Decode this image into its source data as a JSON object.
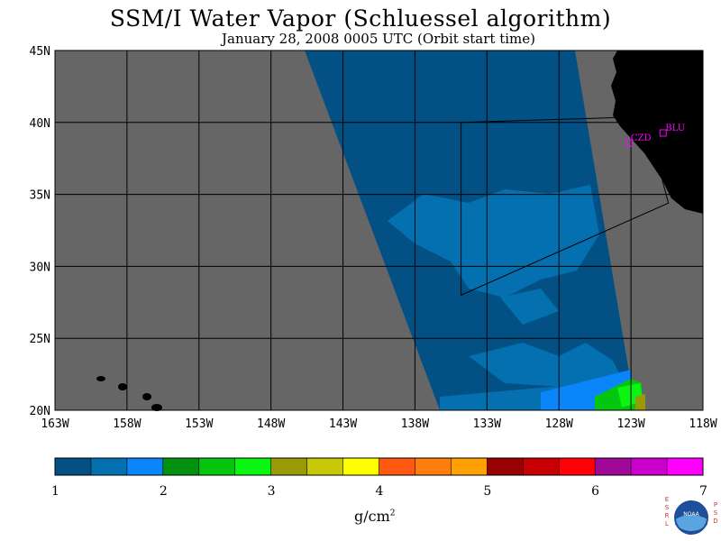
{
  "title": "SSM/I Water Vapor (Schluessel algorithm)",
  "subtitle": "January 28, 2008  0005 UTC  (Orbit start time)",
  "map": {
    "lat_labels": [
      "45N",
      "40N",
      "35N",
      "30N",
      "25N",
      "20N"
    ],
    "lon_labels": [
      "163W",
      "158W",
      "153W",
      "148W",
      "143W",
      "138W",
      "133W",
      "128W",
      "123W",
      "118W"
    ],
    "stations": [
      {
        "code": "CZD",
        "lat": 38.6,
        "lon": -123.2
      },
      {
        "code": "BLU",
        "lat": 39.3,
        "lon": -120.8
      }
    ],
    "region_polygon": [
      [
        -134.8,
        40.0
      ],
      [
        -122.0,
        40.4
      ],
      [
        -120.4,
        34.4
      ],
      [
        -134.8,
        28.0
      ]
    ],
    "colors": {
      "no_data": "#666666",
      "land": "#000000",
      "ocean_swath": "#035184",
      "grid": "#000000",
      "station": "#ff00ff"
    }
  },
  "colorbar": {
    "ticks": [
      "1",
      "2",
      "3",
      "4",
      "5",
      "6",
      "7"
    ],
    "colors": [
      "#035184",
      "#0570b0",
      "#0a85fa",
      "#049111",
      "#06c50e",
      "#0af511",
      "#9a9a06",
      "#c8c809",
      "#fefe00",
      "#ff5811",
      "#ff7d0c",
      "#ffa003",
      "#990000",
      "#c90003",
      "#ff0006",
      "#a00898",
      "#cc00cc",
      "#ff00ff"
    ],
    "units_label": "g/cm",
    "units_exp": "2"
  },
  "logo": {
    "left_text": "ESRL",
    "right_text": "PSD",
    "center_text": "NOAA"
  }
}
